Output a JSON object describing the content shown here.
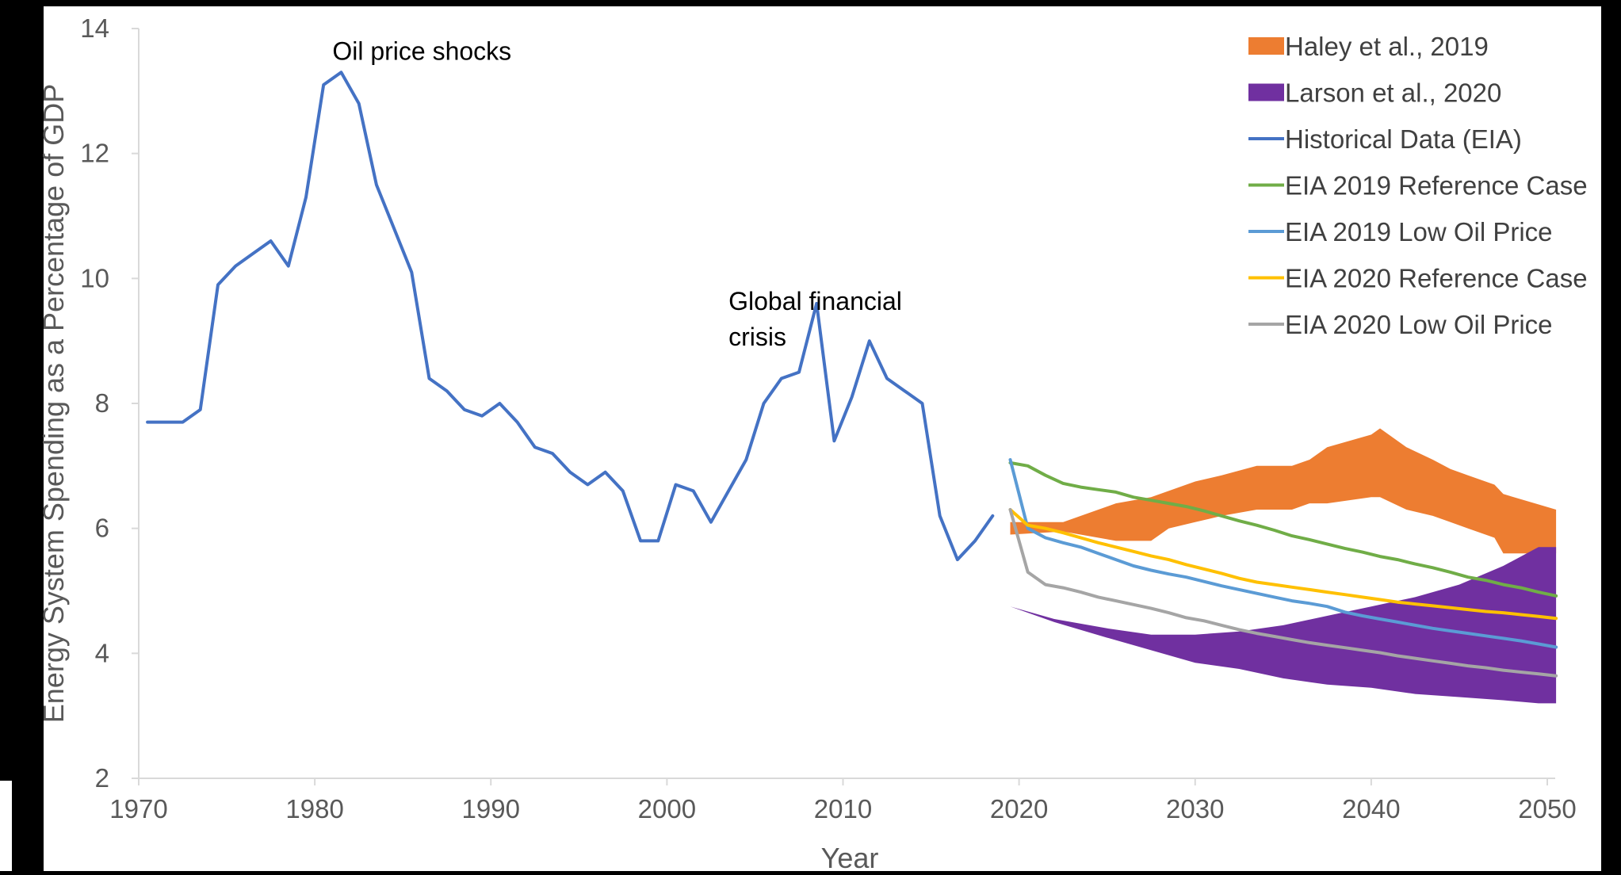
{
  "chart_data": {
    "type": "line",
    "xlabel": "Year",
    "ylabel": "Energy System Spending as a Percentage of GDP",
    "xlim": [
      1970,
      2050
    ],
    "ylim": [
      2,
      14
    ],
    "x_ticks": [
      1970,
      1980,
      1990,
      2000,
      2010,
      2020,
      2030,
      2040,
      2050
    ],
    "y_ticks": [
      2,
      4,
      6,
      8,
      10,
      12,
      14
    ],
    "grid": false,
    "legend_position": "top-right",
    "annotations": [
      {
        "lines": [
          "Oil price shocks"
        ],
        "x": 1981,
        "y": 13.5
      },
      {
        "lines": [
          "Global financial",
          "crisis"
        ],
        "x": 2003.5,
        "y": 9.5
      }
    ],
    "series": [
      {
        "name": "Haley et al., 2019",
        "kind": "band",
        "color": "#ED7D31",
        "x": [
          2019.5,
          2022.5,
          2025.5,
          2027.5,
          2028.5,
          2030,
          2031.5,
          2033.5,
          2035.5,
          2036.5,
          2037.5,
          2040,
          2040.5,
          2042,
          2043.5,
          2044.5,
          2045.5,
          2047,
          2047.5,
          2050.5
        ],
        "upper": [
          6.1,
          6.1,
          6.4,
          6.5,
          6.6,
          6.75,
          6.85,
          7.0,
          7.0,
          7.1,
          7.3,
          7.5,
          7.6,
          7.3,
          7.1,
          6.95,
          6.85,
          6.7,
          6.55,
          6.3
        ],
        "lower": [
          5.9,
          5.95,
          5.8,
          5.8,
          6.0,
          6.1,
          6.2,
          6.3,
          6.3,
          6.4,
          6.4,
          6.5,
          6.5,
          6.3,
          6.2,
          6.1,
          6.0,
          5.85,
          5.6,
          5.6
        ]
      },
      {
        "name": "Larson et al., 2020",
        "kind": "band",
        "color": "#7030A0",
        "x": [
          2019.5,
          2022,
          2025,
          2027.5,
          2030,
          2032.5,
          2035,
          2037.5,
          2040,
          2042.5,
          2045,
          2047.5,
          2049.5,
          2050.5
        ],
        "upper": [
          4.75,
          4.55,
          4.4,
          4.3,
          4.3,
          4.35,
          4.45,
          4.6,
          4.75,
          4.9,
          5.1,
          5.4,
          5.7,
          5.7
        ],
        "lower": [
          4.75,
          4.5,
          4.25,
          4.05,
          3.85,
          3.75,
          3.6,
          3.5,
          3.45,
          3.35,
          3.3,
          3.25,
          3.2,
          3.2
        ]
      },
      {
        "name": "Historical Data (EIA)",
        "kind": "line",
        "color": "#4472C4",
        "x": [
          1970.5,
          1971.5,
          1972.5,
          1973.5,
          1974.5,
          1975.5,
          1976.5,
          1977.5,
          1978.5,
          1979.5,
          1980.5,
          1981.5,
          1982.5,
          1983.5,
          1984.5,
          1985.5,
          1986.5,
          1987.5,
          1988.5,
          1989.5,
          1990.5,
          1991.5,
          1992.5,
          1993.5,
          1994.5,
          1995.5,
          1996.5,
          1997.5,
          1998.5,
          1999.5,
          2000.5,
          2001.5,
          2002.5,
          2003.5,
          2004.5,
          2005.5,
          2006.5,
          2007.5,
          2008.5,
          2009.5,
          2010.5,
          2011.5,
          2012.5,
          2013.5,
          2014.5,
          2015.5,
          2016.5,
          2017.5,
          2018.5
        ],
        "values": [
          7.7,
          7.7,
          7.7,
          7.9,
          9.9,
          10.2,
          10.4,
          10.6,
          10.2,
          11.3,
          13.1,
          13.3,
          12.8,
          11.5,
          10.8,
          10.1,
          8.4,
          8.2,
          7.9,
          7.8,
          8.0,
          7.7,
          7.3,
          7.2,
          6.9,
          6.7,
          6.9,
          6.6,
          5.8,
          5.8,
          6.7,
          6.6,
          6.1,
          6.6,
          7.1,
          8.0,
          8.4,
          8.5,
          9.6,
          7.4,
          8.1,
          9.0,
          8.4,
          8.2,
          8.0,
          6.2,
          5.5,
          5.8,
          6.2
        ]
      },
      {
        "name": "EIA 2019 Reference Case",
        "kind": "line",
        "color": "#70AD47",
        "x": [
          2019.5,
          2020.5,
          2021.5,
          2022.5,
          2023.5,
          2024.5,
          2025.5,
          2026.5,
          2027.5,
          2028.5,
          2029.5,
          2030.5,
          2031.5,
          2032.5,
          2033.5,
          2034.5,
          2035.5,
          2036.5,
          2037.5,
          2038.5,
          2039.5,
          2040.5,
          2041.5,
          2042.5,
          2043.5,
          2044.5,
          2045.5,
          2046.5,
          2047.5,
          2048.5,
          2049.5,
          2050.5
        ],
        "values": [
          7.05,
          7.0,
          6.85,
          6.72,
          6.66,
          6.62,
          6.58,
          6.5,
          6.45,
          6.4,
          6.35,
          6.28,
          6.2,
          6.12,
          6.05,
          5.97,
          5.88,
          5.82,
          5.75,
          5.68,
          5.62,
          5.55,
          5.5,
          5.43,
          5.37,
          5.3,
          5.22,
          5.17,
          5.1,
          5.05,
          4.98,
          4.92
        ]
      },
      {
        "name": "EIA 2019 Low Oil Price",
        "kind": "line",
        "color": "#5B9BD5",
        "x": [
          2019.5,
          2020.5,
          2021.5,
          2022.5,
          2023.5,
          2024.5,
          2025.5,
          2026.5,
          2027.5,
          2028.5,
          2029.5,
          2030.5,
          2031.5,
          2032.5,
          2033.5,
          2034.5,
          2035.5,
          2036.5,
          2037.5,
          2038.5,
          2039.5,
          2040.5,
          2041.5,
          2042.5,
          2043.5,
          2044.5,
          2045.5,
          2046.5,
          2047.5,
          2048.5,
          2049.5,
          2050.5
        ],
        "values": [
          7.1,
          6.0,
          5.85,
          5.77,
          5.7,
          5.6,
          5.5,
          5.4,
          5.33,
          5.27,
          5.22,
          5.15,
          5.08,
          5.02,
          4.96,
          4.9,
          4.84,
          4.8,
          4.75,
          4.66,
          4.6,
          4.55,
          4.5,
          4.45,
          4.4,
          4.36,
          4.32,
          4.28,
          4.24,
          4.2,
          4.15,
          4.1
        ]
      },
      {
        "name": "EIA 2020 Reference Case",
        "kind": "line",
        "color": "#FFC000",
        "x": [
          2019.5,
          2020.5,
          2021.5,
          2022.5,
          2023.5,
          2024.5,
          2025.5,
          2026.5,
          2027.5,
          2028.5,
          2029.5,
          2030.5,
          2031.5,
          2032.5,
          2033.5,
          2034.5,
          2035.5,
          2036.5,
          2037.5,
          2038.5,
          2039.5,
          2040.5,
          2041.5,
          2042.5,
          2043.5,
          2044.5,
          2045.5,
          2046.5,
          2047.5,
          2048.5,
          2049.5,
          2050.5
        ],
        "values": [
          6.3,
          6.05,
          6.0,
          5.93,
          5.85,
          5.77,
          5.7,
          5.63,
          5.56,
          5.5,
          5.42,
          5.35,
          5.28,
          5.2,
          5.14,
          5.1,
          5.06,
          5.02,
          4.98,
          4.94,
          4.9,
          4.86,
          4.82,
          4.79,
          4.76,
          4.73,
          4.7,
          4.67,
          4.65,
          4.62,
          4.59,
          4.56
        ]
      },
      {
        "name": "EIA 2020 Low Oil Price",
        "kind": "line",
        "color": "#A5A5A5",
        "x": [
          2019.5,
          2020.5,
          2021.5,
          2022.5,
          2023.5,
          2024.5,
          2025.5,
          2026.5,
          2027.5,
          2028.5,
          2029.5,
          2030.5,
          2031.5,
          2032.5,
          2033.5,
          2034.5,
          2035.5,
          2036.5,
          2037.5,
          2038.5,
          2039.5,
          2040.5,
          2041.5,
          2042.5,
          2043.5,
          2044.5,
          2045.5,
          2046.5,
          2047.5,
          2048.5,
          2049.5,
          2050.5
        ],
        "values": [
          6.3,
          5.3,
          5.1,
          5.05,
          4.98,
          4.9,
          4.84,
          4.78,
          4.72,
          4.65,
          4.57,
          4.52,
          4.45,
          4.38,
          4.32,
          4.27,
          4.22,
          4.17,
          4.13,
          4.09,
          4.05,
          4.01,
          3.96,
          3.92,
          3.88,
          3.84,
          3.8,
          3.77,
          3.73,
          3.7,
          3.67,
          3.64
        ]
      }
    ]
  }
}
